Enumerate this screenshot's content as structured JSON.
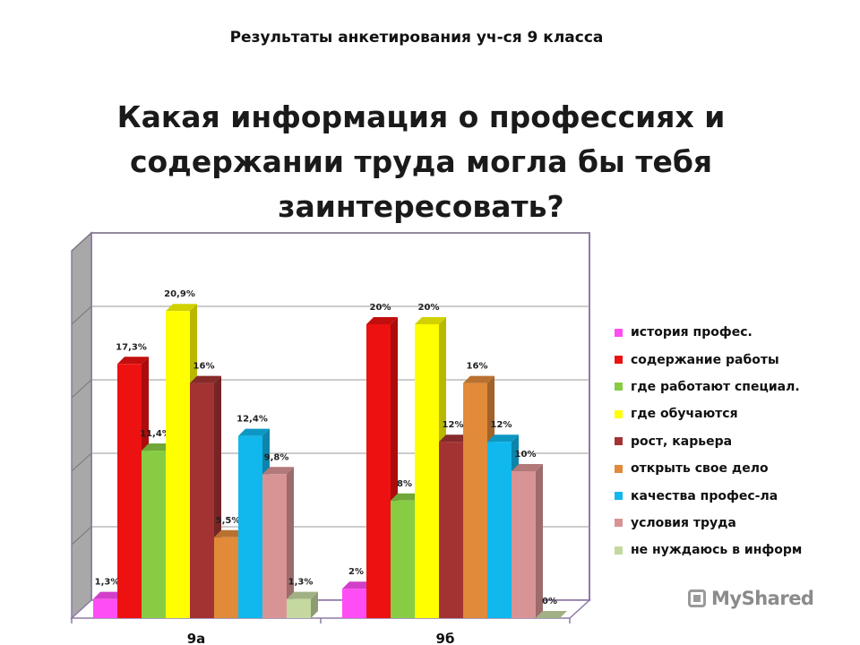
{
  "subtitle": "Результаты анкетирования уч-ся 9 класса",
  "title": "Какая информация о профессиях и содержании труда могла бы тебя заинтересовать?",
  "watermark": "MyShared",
  "chart_data": {
    "type": "bar",
    "subtitle": "Результаты анкетирования уч-ся 9 класса",
    "title": "Какая информация о профессиях и содержании труда могла бы тебя заинтересовать?",
    "categories": [
      "9а",
      "9б"
    ],
    "ylim": [
      0,
      25
    ],
    "grid": true,
    "legend_position": "right",
    "series": [
      {
        "name": "история профес.",
        "color": "#ff4df5",
        "values": [
          1.3,
          2
        ],
        "labels": [
          "1,3%",
          "2%"
        ]
      },
      {
        "name": "содержание работы",
        "color": "#ee1111",
        "values": [
          17.3,
          20
        ],
        "labels": [
          "17,3%",
          "20%"
        ]
      },
      {
        "name": "где работают специал.",
        "color": "#88cc44",
        "values": [
          11.4,
          8
        ],
        "labels": [
          "11,4%",
          "8%"
        ]
      },
      {
        "name": "где обучаются",
        "color": "#ffff00",
        "values": [
          20.9,
          20
        ],
        "labels": [
          "20,9%",
          "20%"
        ]
      },
      {
        "name": "рост, карьера",
        "color": "#a33333",
        "values": [
          16,
          12
        ],
        "labels": [
          "16%",
          "12%"
        ]
      },
      {
        "name": "открыть свое дело",
        "color": "#e08a3a",
        "values": [
          5.5,
          16
        ],
        "labels": [
          "5,5%",
          "16%"
        ]
      },
      {
        "name": "качества профес-ла",
        "color": "#10b8ee",
        "values": [
          12.4,
          12
        ],
        "labels": [
          "12,4%",
          "12%"
        ]
      },
      {
        "name": "условия труда",
        "color": "#d89494",
        "values": [
          9.8,
          10
        ],
        "labels": [
          "9,8%",
          "10%"
        ]
      },
      {
        "name": "не нуждаюсь в информ",
        "color": "#c4d8a0",
        "values": [
          1.3,
          0
        ],
        "labels": [
          "1,3%",
          "0%"
        ]
      }
    ]
  }
}
